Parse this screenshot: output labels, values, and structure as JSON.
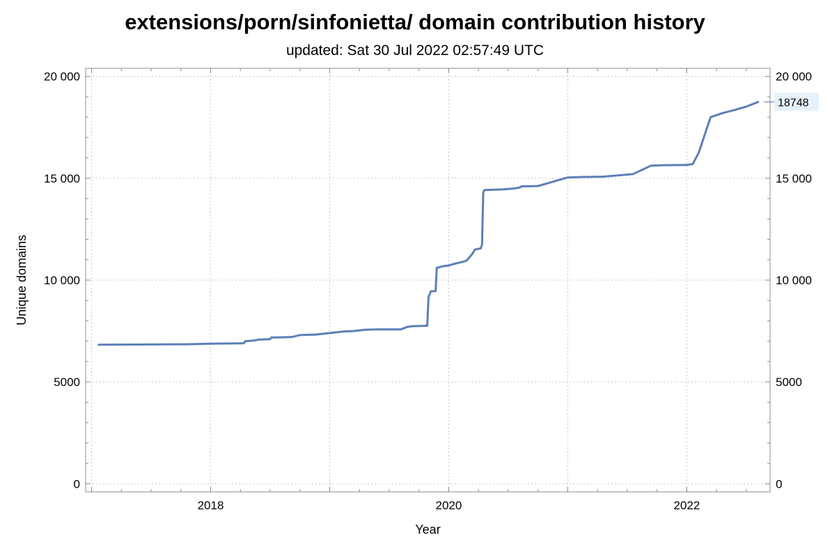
{
  "title": "extensions/porn/sinfonietta/ domain contribution history",
  "subtitle": "updated: Sat 30 Jul 2022 02:57:49 UTC",
  "chart_data": {
    "type": "line",
    "title": "extensions/porn/sinfonietta/ domain contribution history",
    "subtitle": "updated: Sat 30 Jul 2022 02:57:49 UTC",
    "xlabel": "Year",
    "ylabel": "Unique domains",
    "xlim": [
      2016.95,
      2022.7
    ],
    "ylim": [
      -400,
      20400
    ],
    "x_ticks": [
      2018,
      2020,
      2022
    ],
    "y_ticks": [
      0,
      5000,
      10000,
      15000,
      20000
    ],
    "y_tick_labels": [
      "0",
      "5000",
      "10 000",
      "15 000",
      "20 000"
    ],
    "grid": true,
    "line_color": "#5c7fb8",
    "end_label": "18748",
    "end_label_bg": "#e6f2fb",
    "series": [
      {
        "x": [
          2017.06,
          2017.5,
          2017.8,
          2018.0,
          2018.2,
          2018.28,
          2018.29,
          2018.38,
          2018.4,
          2018.5,
          2018.51,
          2018.6,
          2018.68,
          2018.75,
          2018.88,
          2019.0,
          2019.12,
          2019.2,
          2019.3,
          2019.4,
          2019.6,
          2019.65,
          2019.7,
          2019.78,
          2019.82,
          2019.83,
          2019.85,
          2019.89,
          2019.9,
          2019.95,
          2020.0,
          2020.05,
          2020.12,
          2020.15,
          2020.2,
          2020.22,
          2020.27,
          2020.28,
          2020.29,
          2020.3,
          2020.45,
          2020.55,
          2020.6,
          2020.61,
          2020.75,
          2021.0,
          2021.1,
          2021.3,
          2021.5,
          2021.55,
          2021.7,
          2021.8,
          2022.0,
          2022.05,
          2022.1,
          2022.2,
          2022.3,
          2022.4,
          2022.5,
          2022.6
        ],
        "y": [
          6830,
          6840,
          6850,
          6880,
          6890,
          6900,
          7000,
          7040,
          7080,
          7100,
          7180,
          7190,
          7200,
          7300,
          7320,
          7400,
          7480,
          7500,
          7560,
          7580,
          7580,
          7700,
          7740,
          7750,
          7760,
          9150,
          9450,
          9460,
          10600,
          10680,
          10720,
          10800,
          10900,
          10950,
          11300,
          11500,
          11560,
          11750,
          14300,
          14420,
          14450,
          14500,
          14550,
          14600,
          14620,
          15040,
          15060,
          15080,
          15180,
          15210,
          15620,
          15640,
          15650,
          15700,
          16250,
          18000,
          18200,
          18350,
          18520,
          18748
        ]
      }
    ]
  }
}
